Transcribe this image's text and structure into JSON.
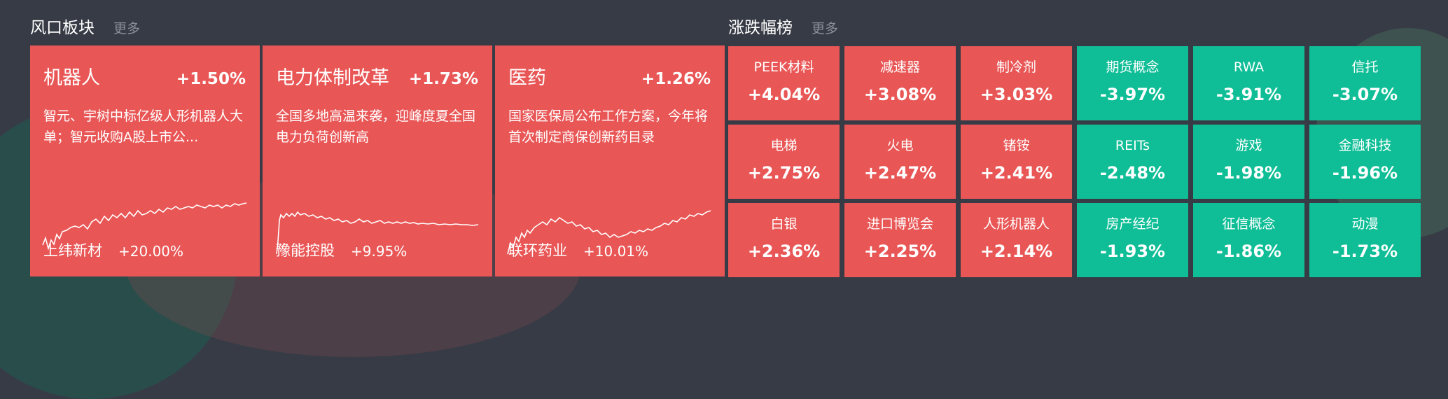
{
  "colors": {
    "up": "#e95656",
    "down": "#0fbe96",
    "background": "#373b45"
  },
  "hot_sectors": {
    "title": "风口板块",
    "more": "更多",
    "cards": [
      {
        "name": "机器人",
        "change": "+1.50%",
        "desc": "智元、宇树中标亿级人形机器人大单；智元收购A股上市公...",
        "stock": "上纬新材",
        "stock_change": "+20.00%"
      },
      {
        "name": "电力体制改革",
        "change": "+1.73%",
        "desc": "全国多地高温来袭，迎峰度夏全国电力负荷创新高",
        "stock": "豫能控股",
        "stock_change": "+9.95%"
      },
      {
        "name": "医药",
        "change": "+1.26%",
        "desc": "国家医保局公布工作方案，今年将首次制定商保创新药目录",
        "stock": "联环药业",
        "stock_change": "+10.01%"
      }
    ]
  },
  "ranking": {
    "title": "涨跌幅榜",
    "more": "更多",
    "gainers": [
      {
        "name": "PEEK材料",
        "change": "+4.04%"
      },
      {
        "name": "减速器",
        "change": "+3.08%"
      },
      {
        "name": "制冷剂",
        "change": "+3.03%"
      },
      {
        "name": "电梯",
        "change": "+2.75%"
      },
      {
        "name": "火电",
        "change": "+2.47%"
      },
      {
        "name": "锗铵",
        "change": "+2.41%"
      },
      {
        "name": "白银",
        "change": "+2.36%"
      },
      {
        "name": "进口博览会",
        "change": "+2.25%"
      },
      {
        "name": "人形机器人",
        "change": "+2.14%"
      }
    ],
    "losers": [
      {
        "name": "期货概念",
        "change": "-3.97%"
      },
      {
        "name": "RWA",
        "change": "-3.91%"
      },
      {
        "name": "信托",
        "change": "-3.07%"
      },
      {
        "name": "REITs",
        "change": "-2.48%"
      },
      {
        "name": "游戏",
        "change": "-1.98%"
      },
      {
        "name": "金融科技",
        "change": "-1.96%"
      },
      {
        "name": "房产经纪",
        "change": "-1.93%"
      },
      {
        "name": "征信概念",
        "change": "-1.86%"
      },
      {
        "name": "动漫",
        "change": "-1.73%"
      }
    ]
  }
}
